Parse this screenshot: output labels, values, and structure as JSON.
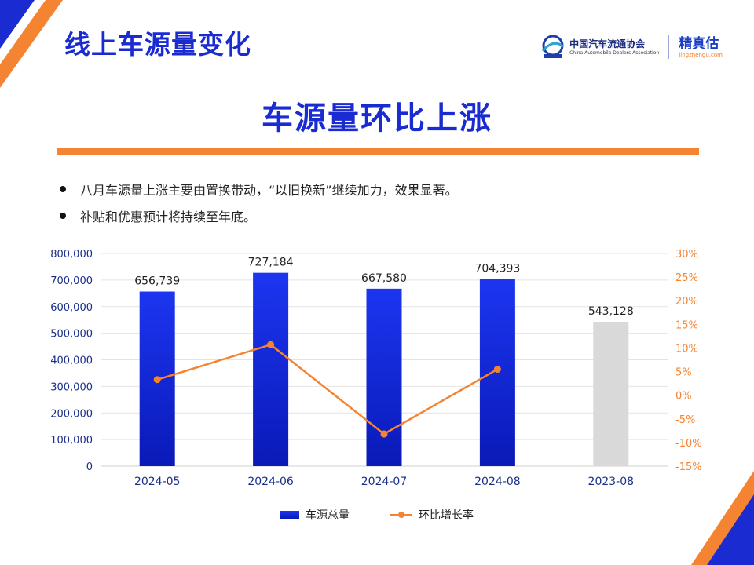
{
  "header": {
    "title": "线上车源量变化",
    "cada_name_cn": "中国汽车流通协会",
    "cada_name_en": "China Automobile Dealers Association",
    "jz_name_cn": "精真估",
    "jz_name_en": "jingzhengu.com"
  },
  "headline": "车源量环比上涨",
  "bullets": [
    "八月车源量上涨主要由置换带动，“以旧换新”继续加力，效果显著。",
    "补贴和优惠预计将持续至年底。"
  ],
  "colors": {
    "title_blue": "#1a2bd1",
    "bar_blue_top": "#1c35f0",
    "bar_blue_bottom": "#0a1ab8",
    "bar_gray": "#d9d9d9",
    "line_orange": "#f48432",
    "left_axis_text": "#1a2f8a"
  },
  "chart_data": {
    "type": "bar",
    "categories": [
      "2024-05",
      "2024-06",
      "2024-07",
      "2024-08",
      "2023-08"
    ],
    "series": [
      {
        "name": "车源总量",
        "type": "bar",
        "axis": "left",
        "values": [
          656739,
          727184,
          667580,
          704393,
          543128
        ],
        "labels": [
          "656,739",
          "727,184",
          "667,580",
          "704,393",
          "543,128"
        ],
        "highlight": [
          true,
          true,
          true,
          true,
          false
        ]
      },
      {
        "name": "环比增长率",
        "type": "line",
        "axis": "right",
        "values": [
          3.3,
          10.7,
          -8.2,
          5.5,
          null
        ]
      }
    ],
    "y_left": {
      "min": 0,
      "max": 800000,
      "ticks": [
        0,
        100000,
        200000,
        300000,
        400000,
        500000,
        600000,
        700000,
        800000
      ],
      "tick_labels": [
        "0",
        "100,000",
        "200,000",
        "300,000",
        "400,000",
        "500,000",
        "600,000",
        "700,000",
        "800,000"
      ]
    },
    "y_right": {
      "min": -15,
      "max": 30,
      "ticks": [
        -15,
        -10,
        -5,
        0,
        5,
        10,
        15,
        20,
        25,
        30
      ],
      "tick_labels": [
        "-15%",
        "-10%",
        "-5%",
        "0%",
        "5%",
        "10%",
        "15%",
        "20%",
        "25%",
        "30%"
      ]
    },
    "grid": true,
    "legend_position": "bottom"
  }
}
